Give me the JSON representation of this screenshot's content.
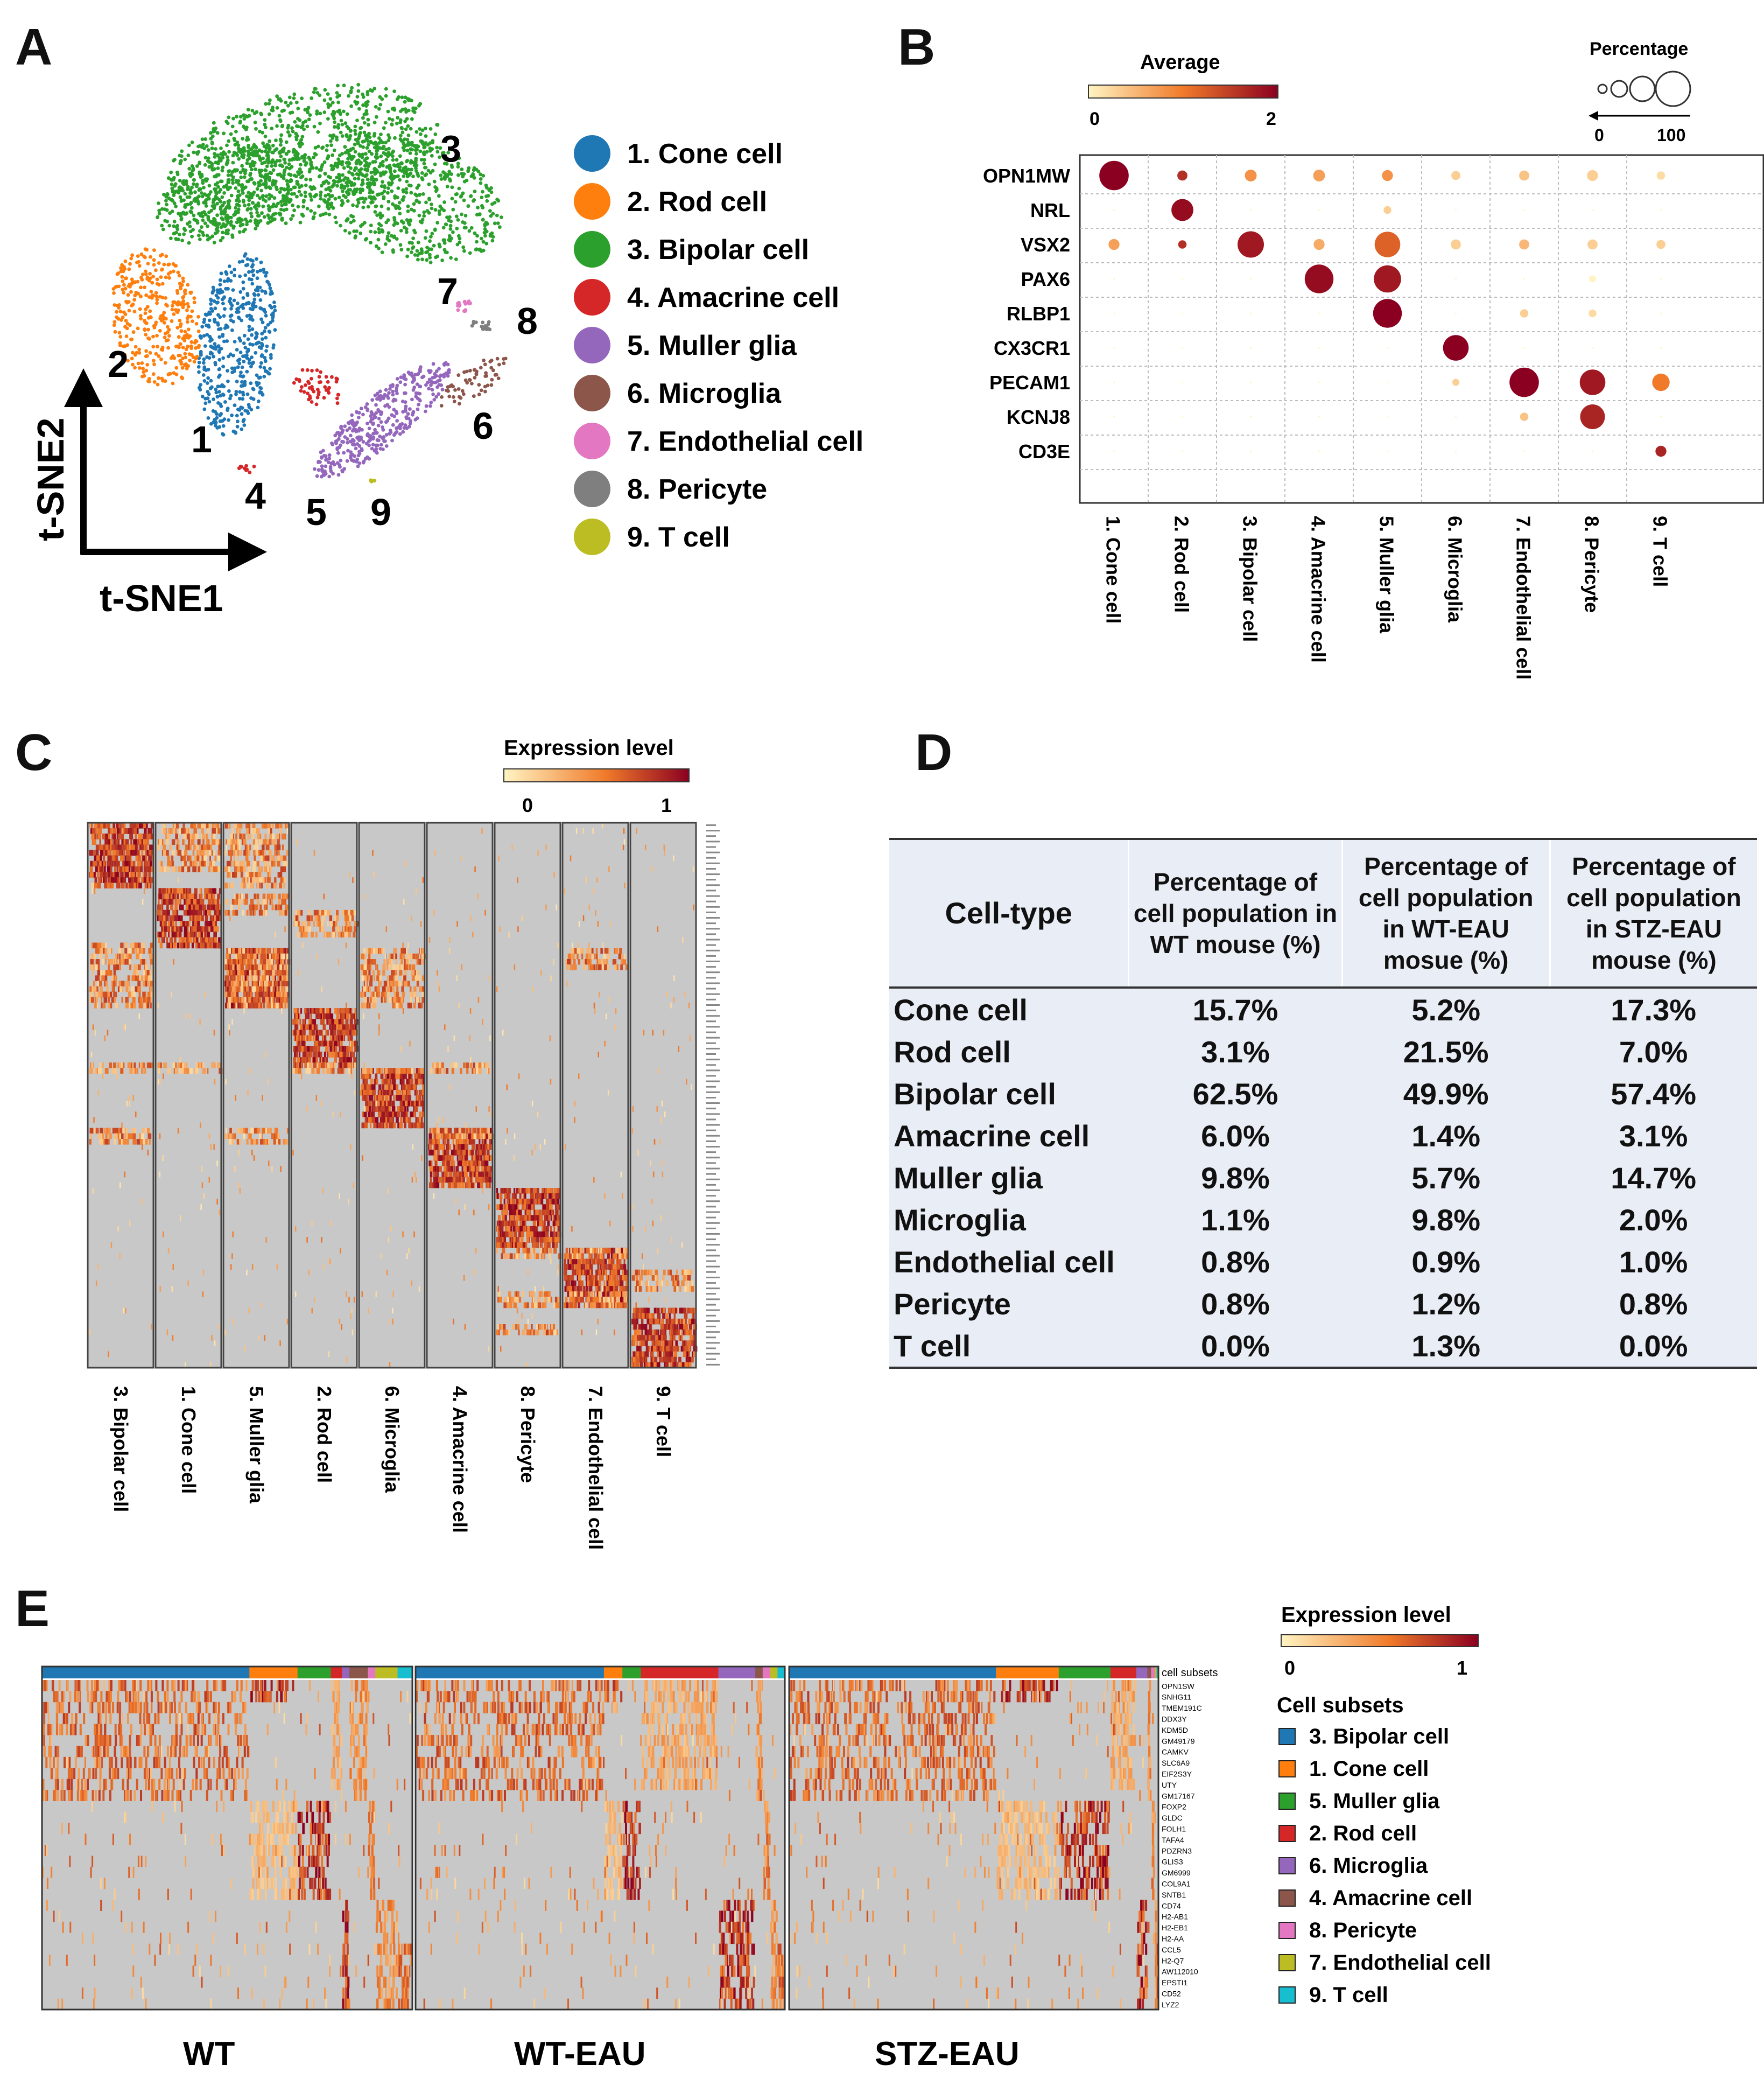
{
  "panels": {
    "A": "A",
    "B": "B",
    "C": "C",
    "D": "D",
    "E": "E"
  },
  "colors": {
    "cone": "#1f77b4",
    "rod": "#ff7f0e",
    "bipolar": "#2ca02c",
    "amacrine": "#d62728",
    "muller": "#9467bd",
    "microglia": "#8c564b",
    "endothelial": "#e377c2",
    "pericyte": "#7f7f7f",
    "tcell": "#bcbd22",
    "tcell_e": "#17becf",
    "heat_low": "#fff4c2",
    "heat_mid": "#f07a2a",
    "heat_high": "#8b0020",
    "heat_bg": "#c8c8c8"
  },
  "panelA": {
    "axis_y": "t-SNE2",
    "axis_x": "t-SNE1",
    "cluster_numbers": [
      "1",
      "2",
      "3",
      "4",
      "5",
      "6",
      "7",
      "8",
      "9"
    ],
    "legend": [
      {
        "label": "1. Cone cell",
        "color": "#1f77b4"
      },
      {
        "label": "2. Rod cell",
        "color": "#ff7f0e"
      },
      {
        "label": "3. Bipolar cell",
        "color": "#2ca02c"
      },
      {
        "label": "4. Amacrine cell",
        "color": "#d62728"
      },
      {
        "label": "5. Muller glia",
        "color": "#9467bd"
      },
      {
        "label": "6. Microglia",
        "color": "#8c564b"
      },
      {
        "label": "7. Endothelial cell",
        "color": "#e377c2"
      },
      {
        "label": "8. Pericyte",
        "color": "#7f7f7f"
      },
      {
        "label": "9. T cell",
        "color": "#bcbd22"
      }
    ]
  },
  "chart_data": [
    {
      "type": "scatter",
      "title": "",
      "xlabel": "t-SNE1",
      "ylabel": "t-SNE2",
      "categories": [
        "1. Cone cell",
        "2. Rod cell",
        "3. Bipolar cell",
        "4. Amacrine cell",
        "5. Muller glia",
        "6. Microglia",
        "7. Endothelial cell",
        "8. Pericyte",
        "9. T cell"
      ]
    },
    {
      "type": "scatter",
      "subtype": "dot-plot",
      "genes": [
        "OPN1MW",
        "NRL",
        "VSX2",
        "PAX6",
        "RLBP1",
        "CX3CR1",
        "PECAM1",
        "KCNJ8",
        "CD3E"
      ],
      "cell_types": [
        "1. Cone cell",
        "2. Rod cell",
        "3. Bipolar cell",
        "4. Amacrine cell",
        "5. Muller glia",
        "6. Microglia",
        "7. Endothelial cell",
        "8. Pericyte",
        "9. T cell"
      ],
      "average_legend": {
        "title": "Average",
        "min": "0",
        "max": "2"
      },
      "percentage_legend": {
        "title": "Percentage",
        "min": "0",
        "max": "100"
      },
      "average": [
        [
          2.0,
          1.6,
          0.8,
          0.7,
          0.8,
          0.3,
          0.4,
          0.3,
          0.2
        ],
        [
          0.0,
          1.9,
          0.0,
          0.0,
          0.3,
          0.0,
          0.0,
          0.0,
          0.0
        ],
        [
          0.7,
          1.6,
          1.8,
          0.6,
          1.2,
          0.3,
          0.5,
          0.3,
          0.3
        ],
        [
          0.0,
          0.0,
          0.0,
          1.9,
          1.8,
          0.0,
          0.0,
          0.0,
          0.0
        ],
        [
          0.0,
          0.0,
          0.0,
          0.0,
          2.0,
          0.0,
          0.3,
          0.2,
          0.0
        ],
        [
          0.0,
          0.0,
          0.0,
          0.0,
          0.0,
          2.0,
          0.0,
          0.0,
          0.0
        ],
        [
          0.0,
          0.0,
          0.0,
          0.0,
          0.0,
          0.3,
          2.0,
          1.8,
          1.0
        ],
        [
          0.0,
          0.0,
          0.0,
          0.0,
          0.0,
          0.0,
          0.4,
          1.7,
          0.0
        ],
        [
          0.0,
          0.0,
          0.0,
          0.0,
          0.0,
          0.0,
          0.0,
          0.0,
          1.7
        ]
      ],
      "percentage": [
        [
          95,
          8,
          12,
          12,
          10,
          6,
          8,
          10,
          5
        ],
        [
          0,
          50,
          0,
          0,
          4,
          0,
          0,
          0,
          0
        ],
        [
          10,
          5,
          75,
          10,
          70,
          8,
          8,
          8,
          6
        ],
        [
          0,
          0,
          0,
          90,
          80,
          0,
          0,
          3,
          0
        ],
        [
          0,
          0,
          0,
          0,
          90,
          0,
          5,
          4,
          0
        ],
        [
          0,
          0,
          0,
          0,
          0,
          70,
          0,
          0,
          0
        ],
        [
          0,
          0,
          0,
          0,
          0,
          3,
          95,
          70,
          30
        ],
        [
          0,
          0,
          0,
          0,
          0,
          0,
          5,
          65,
          0
        ],
        [
          0,
          0,
          0,
          0,
          0,
          0,
          0,
          0,
          10
        ]
      ]
    },
    {
      "type": "heatmap",
      "title": "Expression level",
      "legend_min": "0",
      "legend_max": "1",
      "column_groups": [
        "3. Bipolar cell",
        "1. Cone cell",
        "5. Muller glia",
        "2. Rod cell",
        "6. Microglia",
        "4. Amacrine cell",
        "8. Pericyte",
        "7. Endothelial cell",
        "9. T cell"
      ]
    },
    {
      "type": "heatmap",
      "title": "Expression level",
      "legend_min": "0",
      "legend_max": "1",
      "conditions": [
        "WT",
        "WT-EAU",
        "STZ-EAU"
      ],
      "annotation_label": "cell subsets",
      "genes": [
        "OPN1SW",
        "SNHG11",
        "TMEM191C",
        "DDX3Y",
        "KDM5D",
        "GM49179",
        "CAMKV",
        "SLC6A9",
        "EIF2S3Y",
        "UTY",
        "GM17167",
        "FOXP2",
        "GLDC",
        "FOLH1",
        "TAFA4",
        "PDZRN3",
        "GLIS3",
        "GM6999",
        "COL9A1",
        "SNTB1",
        "CD74",
        "H2-AB1",
        "H2-EB1",
        "H2-AA",
        "CCL5",
        "H2-Q7",
        "AW112010",
        "EPSTI1",
        "CD52",
        "LYZ2"
      ]
    }
  ],
  "panelB": {
    "average_title": "Average",
    "average_min": "0",
    "average_max": "2",
    "percentage_title": "Percentage",
    "percentage_min": "0",
    "percentage_max": "100"
  },
  "panelC": {
    "legend_title": "Expression level",
    "legend_min": "0",
    "legend_max": "1"
  },
  "panelD": {
    "headers": [
      "Cell-type",
      "Percentage of cell population in WT mouse (%)",
      "Percentage of cell population in WT-EAU mosue (%)",
      "Percentage of cell population in STZ-EAU mouse (%)"
    ],
    "rows": [
      [
        "Cone cell",
        "15.7%",
        "5.2%",
        "17.3%"
      ],
      [
        "Rod cell",
        "3.1%",
        "21.5%",
        "7.0%"
      ],
      [
        "Bipolar cell",
        "62.5%",
        "49.9%",
        "57.4%"
      ],
      [
        "Amacrine cell",
        "6.0%",
        "1.4%",
        "3.1%"
      ],
      [
        "Muller glia",
        "9.8%",
        "5.7%",
        "14.7%"
      ],
      [
        "Microglia",
        "1.1%",
        "9.8%",
        "2.0%"
      ],
      [
        "Endothelial cell",
        "0.8%",
        "0.9%",
        "1.0%"
      ],
      [
        "Pericyte",
        "0.8%",
        "1.2%",
        "0.8%"
      ],
      [
        "T cell",
        "0.0%",
        "1.3%",
        "0.0%"
      ]
    ]
  },
  "panelE": {
    "legend_title": "Expression level",
    "legend_min": "0",
    "legend_max": "1",
    "subsets_title": "Cell subsets",
    "annotation_label": "cell subsets",
    "conditions": [
      "WT",
      "WT-EAU",
      "STZ-EAU"
    ],
    "subsets": [
      {
        "label": "3. Bipolar cell",
        "color": "#1f77b4"
      },
      {
        "label": "1. Cone cell",
        "color": "#ff7f0e"
      },
      {
        "label": "5. Muller glia",
        "color": "#2ca02c"
      },
      {
        "label": "2. Rod cell",
        "color": "#d62728"
      },
      {
        "label": "6. Microglia",
        "color": "#9467bd"
      },
      {
        "label": "4. Amacrine cell",
        "color": "#8c564b"
      },
      {
        "label": "8. Pericyte",
        "color": "#e377c2"
      },
      {
        "label": "7. Endothelial cell",
        "color": "#bcbd22"
      },
      {
        "label": "9. T cell",
        "color": "#17becf"
      }
    ]
  }
}
